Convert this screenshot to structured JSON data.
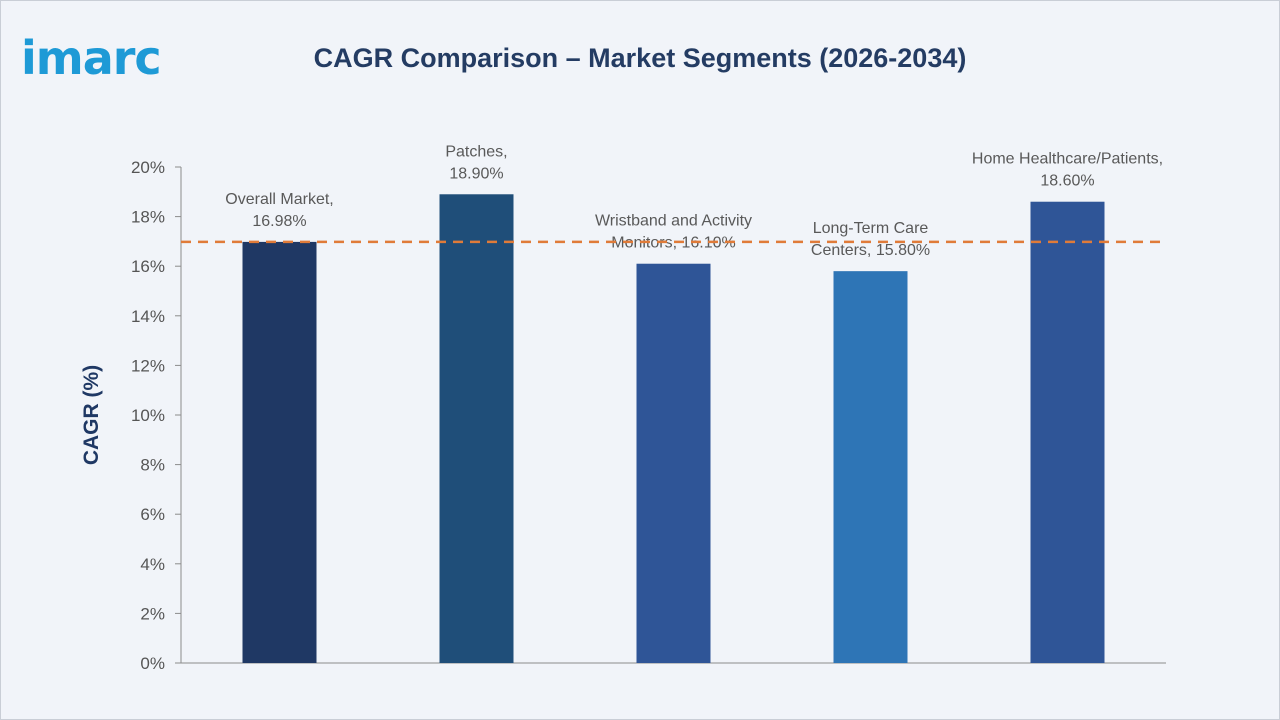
{
  "brand": {
    "logo_text": "imarc"
  },
  "chart_data": {
    "type": "bar",
    "title": "CAGR Comparison – Market Segments (2026-2034)",
    "ylabel": "CAGR (%)",
    "xlabel": "",
    "ylim": [
      0,
      20
    ],
    "yticks": [
      0,
      2,
      4,
      6,
      8,
      10,
      12,
      14,
      16,
      18,
      20
    ],
    "ytick_suffix": "%",
    "categories": [
      "Overall Market",
      "Patches",
      "Wristband and Activity Monitors",
      "Long-Term Care Centers",
      "Home Healthcare/Patients"
    ],
    "values": [
      16.98,
      18.9,
      16.1,
      15.8,
      18.6
    ],
    "data_labels": [
      [
        "Overall Market,",
        "16.98%"
      ],
      [
        "Patches,",
        "18.90%"
      ],
      [
        "Wristband and Activity",
        "Monitors, 16.10%"
      ],
      [
        "Long-Term Care",
        "Centers, 15.80%"
      ],
      [
        "Home Healthcare/Patients,",
        "18.60%"
      ]
    ],
    "colors": [
      "#1f3864",
      "#1f4e79",
      "#2f5597",
      "#2e75b6",
      "#2f5597"
    ],
    "reference_line": {
      "value": 16.98,
      "style": "dashed",
      "color": "#e07b39"
    },
    "grid": false,
    "legend": "none"
  }
}
